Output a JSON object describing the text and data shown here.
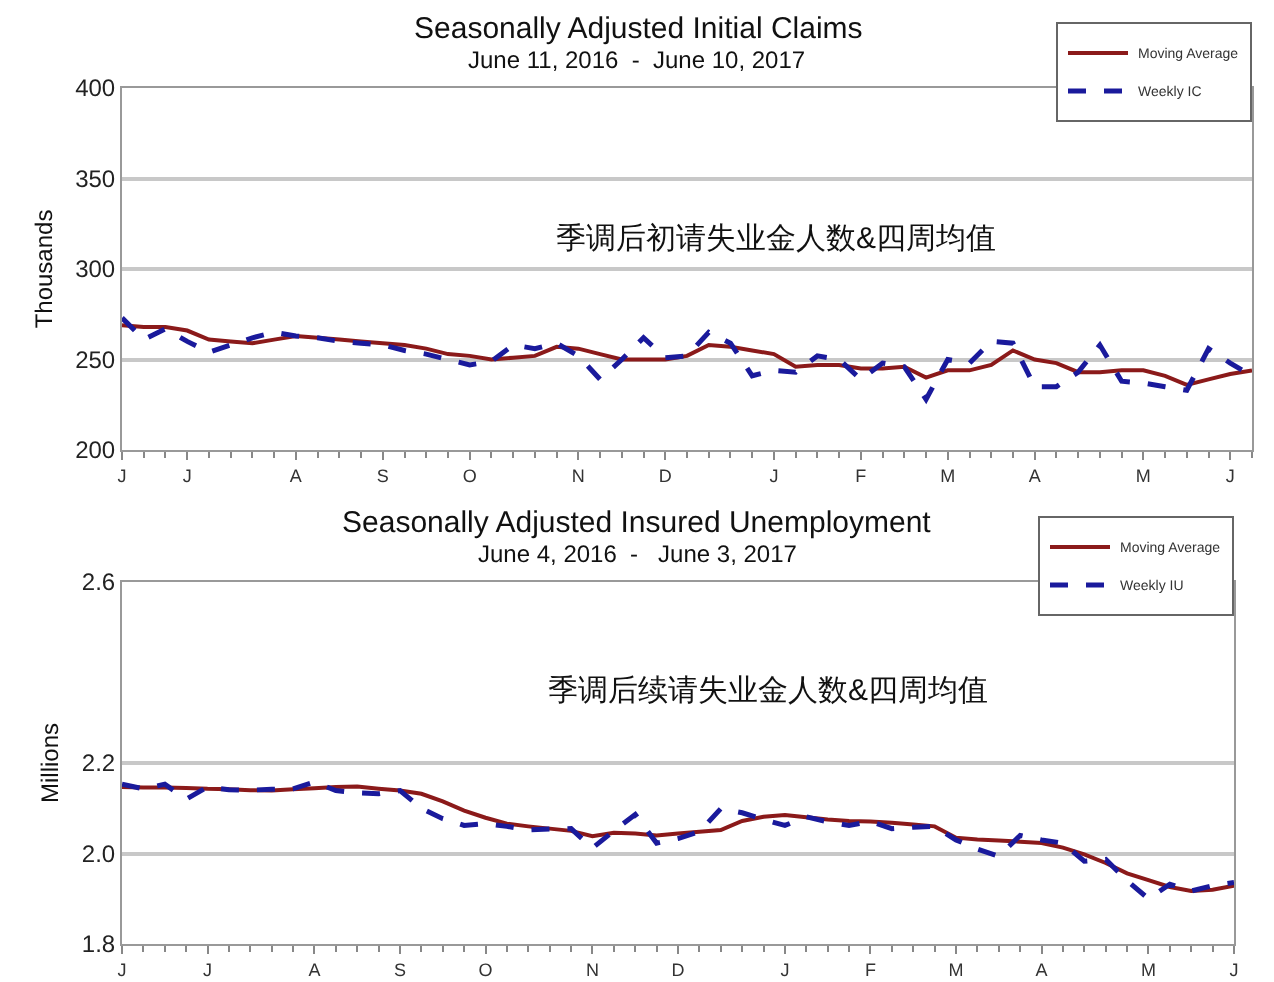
{
  "chart_data": [
    {
      "type": "line",
      "title": "Seasonally Adjusted Initial Claims",
      "subtitle": "June 11, 2016  -  June 10, 2017",
      "ylabel": "Thousands",
      "annotations": [
        "季调后初请失业金人数&四周均值"
      ],
      "categories": [
        "J",
        null,
        null,
        "J",
        null,
        null,
        null,
        null,
        "A",
        null,
        null,
        null,
        "S",
        null,
        null,
        null,
        "O",
        null,
        null,
        null,
        null,
        "N",
        null,
        null,
        null,
        "D",
        null,
        null,
        null,
        null,
        "J",
        null,
        null,
        null,
        "F",
        null,
        null,
        null,
        "M",
        null,
        null,
        null,
        "A",
        null,
        null,
        null,
        null,
        "M",
        null,
        null,
        null,
        "J",
        null
      ],
      "ylim": [
        200,
        400
      ],
      "yticks": [
        200,
        250,
        300,
        350,
        400
      ],
      "grid": "y",
      "legend": "top right",
      "series": [
        {
          "name": "Moving Average",
          "color": "#8b1a1a",
          "line_style": "solid",
          "values": [
            269,
            268,
            268,
            266,
            261,
            260,
            259,
            261,
            263,
            262,
            261,
            260,
            259,
            258,
            256,
            253,
            252,
            250,
            251,
            252,
            257,
            256,
            253,
            250,
            250,
            250,
            252,
            258,
            257,
            255,
            253,
            246,
            247,
            247,
            245,
            245,
            246,
            240,
            244,
            244,
            247,
            255,
            250,
            248,
            243,
            243,
            244,
            244,
            241,
            236,
            239,
            242,
            244
          ]
        },
        {
          "name": "Weekly IC",
          "color": "#1a1a9c",
          "line_style": "dashed",
          "values": [
            273,
            261,
            267,
            260,
            254,
            258,
            262,
            265,
            263,
            262,
            260,
            259,
            258,
            255,
            253,
            250,
            247,
            249,
            258,
            256,
            259,
            252,
            239,
            250,
            262,
            251,
            252,
            265,
            259,
            241,
            244,
            243,
            252,
            250,
            239,
            248,
            246,
            228,
            250,
            248,
            260,
            259,
            235,
            235,
            243,
            258,
            238,
            237,
            235,
            233,
            256,
            248,
            241
          ]
        }
      ]
    },
    {
      "type": "line",
      "title": "Seasonally Adjusted Insured Unemployment",
      "subtitle": "June 4, 2016  -   June 3, 2017",
      "ylabel": "Millions",
      "annotations": [
        "季调后续请失业金人数&四周均值"
      ],
      "categories": [
        "J",
        null,
        null,
        null,
        "J",
        null,
        null,
        null,
        null,
        "A",
        null,
        null,
        null,
        "S",
        null,
        null,
        null,
        "O",
        null,
        null,
        null,
        null,
        "N",
        null,
        null,
        null,
        "D",
        null,
        null,
        null,
        null,
        "J",
        null,
        null,
        null,
        "F",
        null,
        null,
        null,
        "M",
        null,
        null,
        null,
        "A",
        null,
        null,
        null,
        null,
        "M",
        null,
        null,
        null,
        "J"
      ],
      "ylim": [
        1.8,
        2.6
      ],
      "yticks": [
        1.8,
        {
          "value": 2,
          "label": "2.0"
        },
        2.2,
        2.6
      ],
      "grid": "y",
      "legend": "top right",
      "series": [
        {
          "name": "Moving Average",
          "color": "#8b1a1a",
          "line_style": "solid",
          "values": [
            2.147,
            2.146,
            2.146,
            2.145,
            2.143,
            2.142,
            2.14,
            2.139,
            2.142,
            2.144,
            2.147,
            2.148,
            2.143,
            2.139,
            2.132,
            2.115,
            2.095,
            2.079,
            2.066,
            2.06,
            2.055,
            2.05,
            2.038,
            2.046,
            2.044,
            2.04,
            2.044,
            2.048,
            2.052,
            2.072,
            2.081,
            2.085,
            2.08,
            2.075,
            2.072,
            2.071,
            2.068,
            2.064,
            2.06,
            2.035,
            2.031,
            2.029,
            2.026,
            2.023,
            2.013,
            1.998,
            1.979,
            1.956,
            1.941,
            1.926,
            1.917,
            1.92,
            1.929
          ]
        },
        {
          "name": "Weekly IU",
          "color": "#1a1a9c",
          "line_style": "dashed",
          "values": [
            2.153,
            2.143,
            2.153,
            2.12,
            2.147,
            2.141,
            2.14,
            2.142,
            2.143,
            2.158,
            2.139,
            2.134,
            2.132,
            2.139,
            2.1,
            2.077,
            2.062,
            2.066,
            2.06,
            2.052,
            2.054,
            2.055,
            2.012,
            2.05,
            2.086,
            2.023,
            2.033,
            2.048,
            2.099,
            2.09,
            2.075,
            2.062,
            2.081,
            2.07,
            2.062,
            2.071,
            2.055,
            2.058,
            2.06,
            2.03,
            2.01,
            1.994,
            2.04,
            2.03,
            2.023,
            1.983,
            1.987,
            1.94,
            1.9,
            1.932,
            1.917,
            1.929,
            1.936
          ]
        }
      ]
    }
  ]
}
